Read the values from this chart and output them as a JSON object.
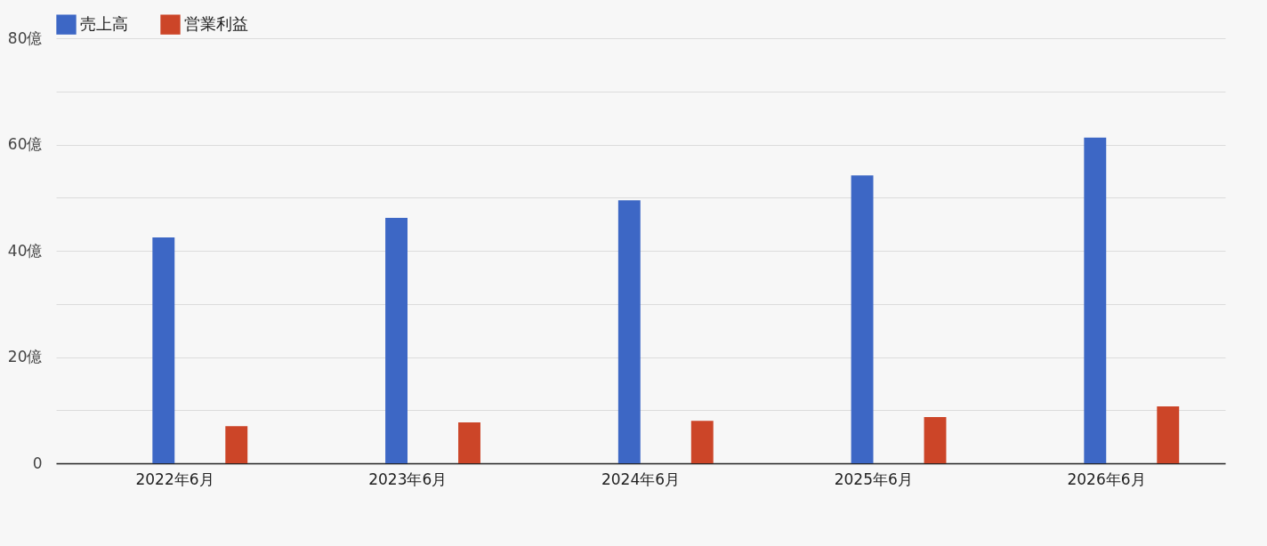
{
  "chart_data": {
    "type": "bar",
    "categories": [
      "2022年6月",
      "2023年6月",
      "2024年6月",
      "2025年6月",
      "2026年6月"
    ],
    "series": [
      {
        "name": "売上高",
        "color": "#3d67c5",
        "values": [
          42.5,
          46.2,
          49.5,
          54.2,
          61.3
        ]
      },
      {
        "name": "営業利益",
        "color": "#cc4528",
        "values": [
          7.0,
          7.7,
          8.0,
          8.7,
          10.7
        ]
      }
    ],
    "ylim": [
      0,
      80
    ],
    "yticks": [
      0,
      {
        "value": 10,
        "label": null
      },
      {
        "value": 20,
        "label": "20億"
      },
      {
        "value": 30,
        "label": null
      },
      {
        "value": 40,
        "label": "40億"
      },
      {
        "value": 50,
        "label": null
      },
      {
        "value": 60,
        "label": "60億"
      },
      {
        "value": 70,
        "label": null
      },
      {
        "value": 80,
        "label": "80億"
      }
    ],
    "grid": "y",
    "legend": "top left"
  }
}
